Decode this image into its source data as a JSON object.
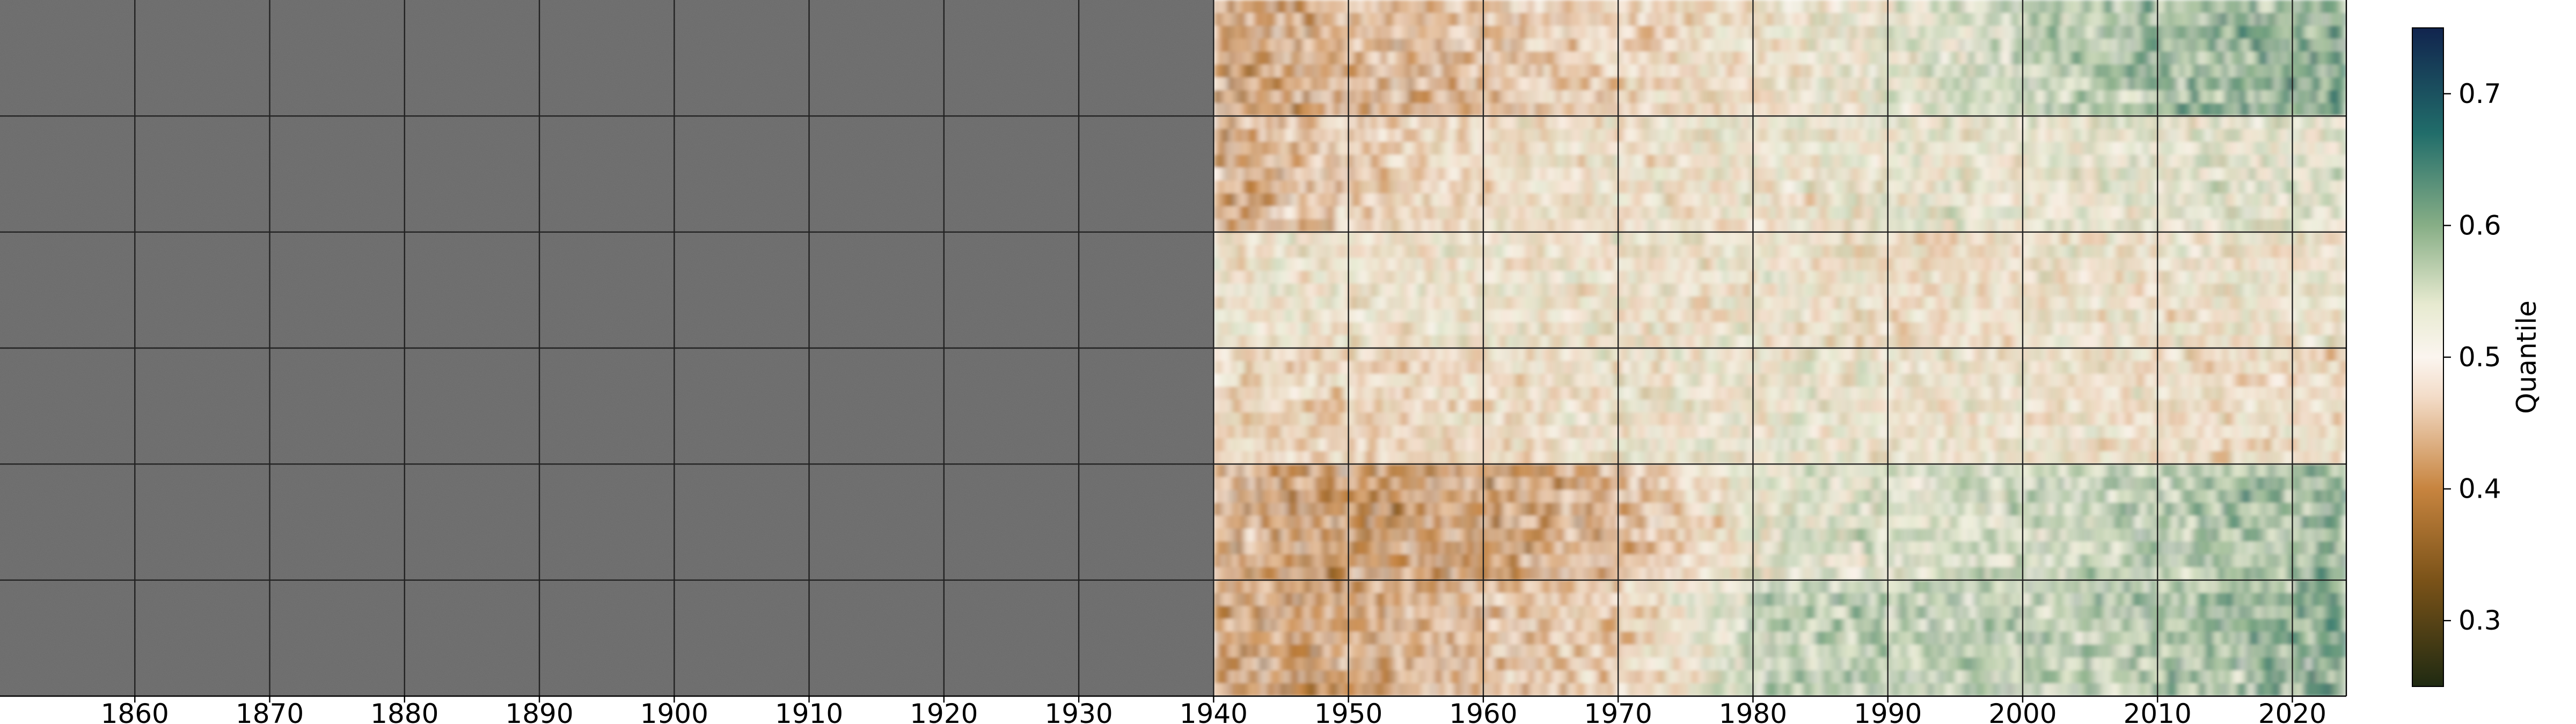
{
  "chart_data": {
    "type": "heatmap",
    "title": "",
    "xlabel": "",
    "ylabel": "",
    "x_ticks": [
      1860,
      1870,
      1880,
      1890,
      1900,
      1910,
      1920,
      1930,
      1940,
      1950,
      1960,
      1970,
      1980,
      1990,
      2000,
      2010,
      2020
    ],
    "xlim": [
      1850,
      2024
    ],
    "no_data_before": 1940,
    "no_data_color": "#636363",
    "grid": true,
    "grid_color": "#222222",
    "rows": 6,
    "colorbar": {
      "label": "Quantile",
      "ticks": [
        0.3,
        0.4,
        0.5,
        0.6,
        0.7
      ],
      "range": [
        0.25,
        0.75
      ],
      "colormap": "BrBG-like (brown low, cream mid, teal/navy high)",
      "stops": [
        {
          "value": 0.25,
          "color": "#1f2a12"
        },
        {
          "value": 0.33,
          "color": "#7a5218"
        },
        {
          "value": 0.4,
          "color": "#c7843f"
        },
        {
          "value": 0.47,
          "color": "#f3dcc8"
        },
        {
          "value": 0.5,
          "color": "#fbf5ef"
        },
        {
          "value": 0.54,
          "color": "#e7ead0"
        },
        {
          "value": 0.6,
          "color": "#87ae86"
        },
        {
          "value": 0.67,
          "color": "#216d6a"
        },
        {
          "value": 0.75,
          "color": "#11244e"
        }
      ]
    },
    "row_tendency": [
      [
        0.44,
        0.45,
        0.46,
        0.48,
        0.5,
        0.52,
        0.55,
        0.57,
        0.58
      ],
      [
        0.44,
        0.47,
        0.49,
        0.5,
        0.5,
        0.51,
        0.51,
        0.52,
        0.52
      ],
      [
        0.5,
        0.5,
        0.5,
        0.5,
        0.5,
        0.49,
        0.5,
        0.5,
        0.5
      ],
      [
        0.48,
        0.48,
        0.49,
        0.5,
        0.51,
        0.5,
        0.5,
        0.49,
        0.49
      ],
      [
        0.45,
        0.43,
        0.44,
        0.46,
        0.52,
        0.53,
        0.54,
        0.56,
        0.57
      ],
      [
        0.44,
        0.44,
        0.46,
        0.48,
        0.55,
        0.55,
        0.55,
        0.56,
        0.58
      ]
    ]
  }
}
